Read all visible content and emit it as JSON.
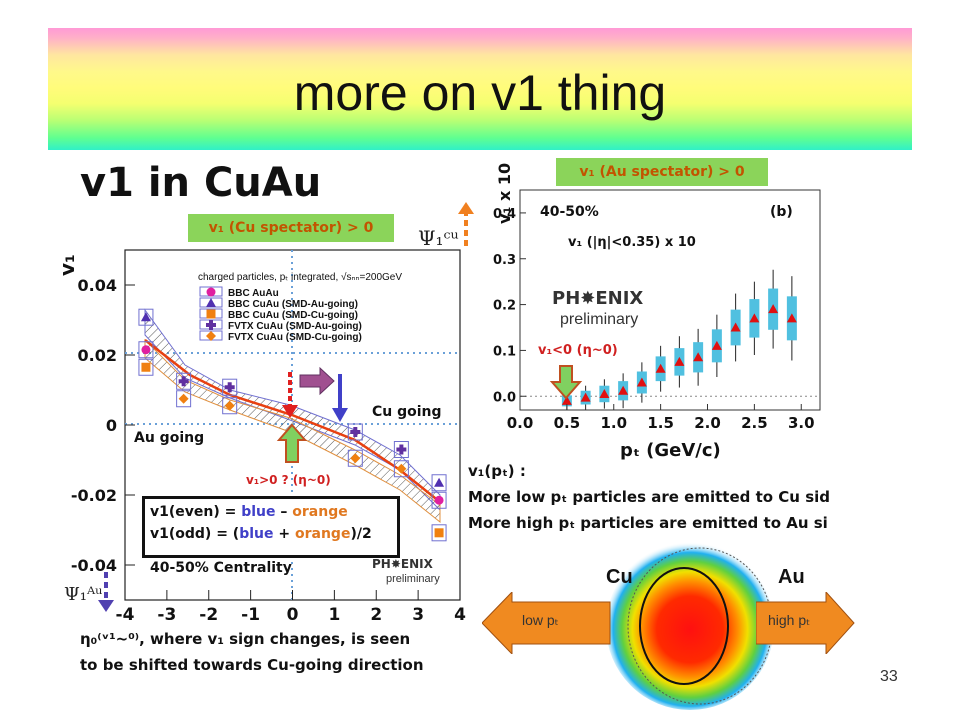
{
  "slide": {
    "title": "more on v1 thing",
    "heading": "v1 in CuAu",
    "page_number": "33"
  },
  "left_plot": {
    "label_cu_spectator": "v₁ (Cu spectator) > 0",
    "psi_cu": "Ψ₁ᶜᵘ",
    "psi_au": "Ψ₁ᴬᵘ",
    "ylabel": "v₁",
    "xlabel": "η",
    "yticks": [
      "0.04",
      "0.02",
      "0",
      "-0.02",
      "-0.04"
    ],
    "xticks": [
      "-4",
      "-3",
      "-2",
      "-1",
      "0",
      "1",
      "2",
      "3",
      "4"
    ],
    "legend_title": "charged particles, pₜ integrated, √sₙₙ=200GeV",
    "legend_items": [
      "BBC  AuAu",
      "BBC  CuAu (SMD-Au-going)",
      "BBC  CuAu (SMD-Cu-going)",
      "FVTX CuAu (SMD-Au-going)",
      "FVTX CuAu (SMD-Cu-going)"
    ],
    "label_cu_going": "Cu going",
    "label_au_going": "Au going",
    "label_centrality": "40-50% Centrality",
    "label_v1_positive": "v₁>0 ? (η~0)",
    "phenix": "PH✸ENIX",
    "phenix_sub": "preliminary",
    "formula_even": [
      "v1(even) = ",
      "blue",
      " – ",
      "orange"
    ],
    "formula_odd": [
      "v1(odd)  = (",
      "blue",
      " + ",
      "orange",
      ")/2"
    ],
    "caption_line1": "η₀⁽ᵛ¹~⁰⁾, where v₁ sign changes, is seen",
    "caption_line2": "to be shifted towards Cu-going direction",
    "chart_data": {
      "type": "scatter",
      "xlim": [
        -4,
        4
      ],
      "ylim": [
        -0.05,
        0.05
      ],
      "xlabel": "η",
      "ylabel": "v₁",
      "series": [
        {
          "name": "BBC  AuAu",
          "x": [
            -3.5,
            3.5
          ],
          "y": [
            0.0215,
            -0.0215
          ]
        },
        {
          "name": "BBC  CuAu (SMD-Au-going)",
          "x": [
            -3.5,
            3.5
          ],
          "y": [
            0.0308,
            -0.0165
          ]
        },
        {
          "name": "BBC  CuAu (SMD-Cu-going)",
          "x": [
            -3.5,
            3.5
          ],
          "y": [
            0.0165,
            -0.0308
          ]
        },
        {
          "name": "FVTX CuAu (SMD-Au-going)",
          "x": [
            -2.6,
            -1.5,
            1.5,
            2.6
          ],
          "y": [
            0.0125,
            0.0108,
            -0.002,
            -0.007
          ]
        },
        {
          "name": "FVTX CuAu (SMD-Cu-going)",
          "x": [
            -2.6,
            -1.5,
            1.5,
            2.6
          ],
          "y": [
            0.0075,
            0.0055,
            -0.0095,
            -0.0125
          ]
        }
      ]
    }
  },
  "right_plot": {
    "label_au_spectator": "v₁ (Au spectator) > 0",
    "ylabel": "v₁ x 10",
    "xlabel": "pₜ (GeV/c)",
    "centrality": "40-50%",
    "panel": "(b)",
    "eta_label": "v₁ (|η|<0.35) x 10",
    "phenix": "PH✸ENIX",
    "phenix_sub": "preliminary",
    "label_v1_negative": "v₁<0 (η~0)",
    "yticks": [
      "0.4",
      "0.3",
      "0.2",
      "0.1",
      "0.0"
    ],
    "xticks": [
      "0.0",
      "0.5",
      "1.0",
      "1.5",
      "2.0",
      "2.5",
      "3.0"
    ],
    "chart_data": {
      "type": "scatter",
      "xlim": [
        0,
        3.2
      ],
      "ylim": [
        -0.03,
        0.45
      ],
      "xlabel": "pₜ (GeV/c)",
      "ylabel": "v₁ x 10",
      "series": [
        {
          "x": [
            0.5,
            0.7,
            0.9,
            1.1,
            1.3,
            1.5,
            1.7,
            1.9,
            2.1,
            2.3,
            2.5,
            2.7,
            2.9
          ],
          "y": [
            -0.01,
            -0.003,
            0.005,
            0.012,
            0.03,
            0.06,
            0.075,
            0.085,
            0.11,
            0.15,
            0.17,
            0.19,
            0.17
          ]
        }
      ]
    }
  },
  "text_block": {
    "line1": "v₁(pₜ) :",
    "line2": "More low pₜ particles are emitted to Cu sid",
    "line3": "More high pₜ particles are emitted to Au si"
  },
  "bottom_right": {
    "cu_label": "Cu",
    "au_label": "Au",
    "low_pt": "low pₜ",
    "high_pt": "high pₜ"
  },
  "colors": {
    "orange_text": "#c25400",
    "green_box": "#8bd45a",
    "blue": "#4040c8",
    "orange": "#e07820"
  }
}
